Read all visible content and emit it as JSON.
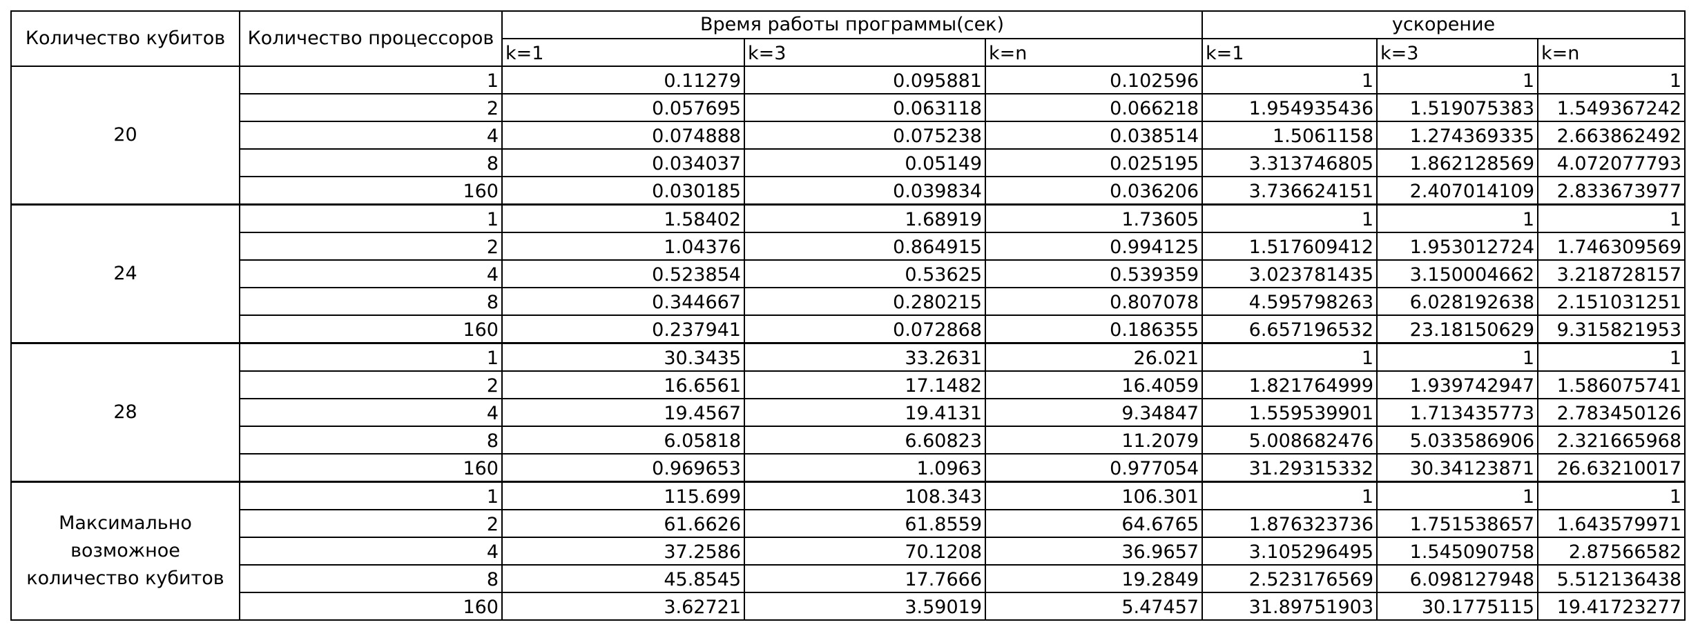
{
  "header": {
    "col_qubits": "Количество кубитов",
    "col_procs": "Количество процессоров",
    "group_time": "Время работы программы(сек)",
    "group_speedup": "ускорение",
    "sub_time": [
      "k=1",
      "k=3",
      "k=n"
    ],
    "sub_speedup": [
      "k=1",
      "k=3",
      "k=n"
    ]
  },
  "groups": [
    {
      "qubits": "20",
      "rows": [
        {
          "procs": "1",
          "t1": "0.11279",
          "t3": "0.095881",
          "tn": "0.102596",
          "s1": "1",
          "s3": "1",
          "sn": "1"
        },
        {
          "procs": "2",
          "t1": "0.057695",
          "t3": "0.063118",
          "tn": "0.066218",
          "s1": "1.954935436",
          "s3": "1.519075383",
          "sn": "1.549367242"
        },
        {
          "procs": "4",
          "t1": "0.074888",
          "t3": "0.075238",
          "tn": "0.038514",
          "s1": "1.5061158",
          "s3": "1.274369335",
          "sn": "2.663862492"
        },
        {
          "procs": "8",
          "t1": "0.034037",
          "t3": "0.05149",
          "tn": "0.025195",
          "s1": "3.313746805",
          "s3": "1.862128569",
          "sn": "4.072077793"
        },
        {
          "procs": "160",
          "t1": "0.030185",
          "t3": "0.039834",
          "tn": "0.036206",
          "s1": "3.736624151",
          "s3": "2.407014109",
          "sn": "2.833673977"
        }
      ]
    },
    {
      "qubits": "24",
      "rows": [
        {
          "procs": "1",
          "t1": "1.58402",
          "t3": "1.68919",
          "tn": "1.73605",
          "s1": "1",
          "s3": "1",
          "sn": "1"
        },
        {
          "procs": "2",
          "t1": "1.04376",
          "t3": "0.864915",
          "tn": "0.994125",
          "s1": "1.517609412",
          "s3": "1.953012724",
          "sn": "1.746309569"
        },
        {
          "procs": "4",
          "t1": "0.523854",
          "t3": "0.53625",
          "tn": "0.539359",
          "s1": "3.023781435",
          "s3": "3.150004662",
          "sn": "3.218728157"
        },
        {
          "procs": "8",
          "t1": "0.344667",
          "t3": "0.280215",
          "tn": "0.807078",
          "s1": "4.595798263",
          "s3": "6.028192638",
          "sn": "2.151031251"
        },
        {
          "procs": "160",
          "t1": "0.237941",
          "t3": "0.072868",
          "tn": "0.186355",
          "s1": "6.657196532",
          "s3": "23.18150629",
          "sn": "9.315821953"
        }
      ]
    },
    {
      "qubits": "28",
      "rows": [
        {
          "procs": "1",
          "t1": "30.3435",
          "t3": "33.2631",
          "tn": "26.021",
          "s1": "1",
          "s3": "1",
          "sn": "1"
        },
        {
          "procs": "2",
          "t1": "16.6561",
          "t3": "17.1482",
          "tn": "16.4059",
          "s1": "1.821764999",
          "s3": "1.939742947",
          "sn": "1.586075741"
        },
        {
          "procs": "4",
          "t1": "19.4567",
          "t3": "19.4131",
          "tn": "9.34847",
          "s1": "1.559539901",
          "s3": "1.713435773",
          "sn": "2.783450126"
        },
        {
          "procs": "8",
          "t1": "6.05818",
          "t3": "6.60823",
          "tn": "11.2079",
          "s1": "5.008682476",
          "s3": "5.033586906",
          "sn": "2.321665968"
        },
        {
          "procs": "160",
          "t1": "0.969653",
          "t3": "1.0963",
          "tn": "0.977054",
          "s1": "31.29315332",
          "s3": "30.34123871",
          "sn": "26.63210017"
        }
      ]
    },
    {
      "qubits": "Максимально возможное количество кубитов",
      "rows": [
        {
          "procs": "1",
          "t1": "115.699",
          "t3": "108.343",
          "tn": "106.301",
          "s1": "1",
          "s3": "1",
          "sn": "1"
        },
        {
          "procs": "2",
          "t1": "61.6626",
          "t3": "61.8559",
          "tn": "64.6765",
          "s1": "1.876323736",
          "s3": "1.751538657",
          "sn": "1.643579971"
        },
        {
          "procs": "4",
          "t1": "37.2586",
          "t3": "70.1208",
          "tn": "36.9657",
          "s1": "3.105296495",
          "s3": "1.545090758",
          "sn": "2.87566582"
        },
        {
          "procs": "8",
          "t1": "45.8545",
          "t3": "17.7666",
          "tn": "19.2849",
          "s1": "2.523176569",
          "s3": "6.098127948",
          "sn": "5.512136438"
        },
        {
          "procs": "160",
          "t1": "3.62721",
          "t3": "3.59019",
          "tn": "5.47457",
          "s1": "31.89751903",
          "s3": "30.1775115",
          "sn": "19.41723277"
        }
      ]
    }
  ]
}
